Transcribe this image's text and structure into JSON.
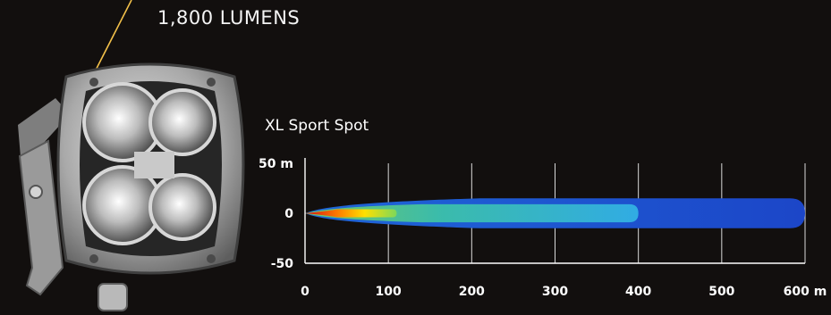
{
  "product": {
    "lumens_label": "1,800 LUMENS"
  },
  "chart_data": {
    "type": "heatmap",
    "title": "XL Sport Spot",
    "xlabel": "",
    "ylabel": "",
    "x_ticks": [
      {
        "value": 0,
        "label": "0"
      },
      {
        "value": 100,
        "label": "100"
      },
      {
        "value": 200,
        "label": "200"
      },
      {
        "value": 300,
        "label": "300"
      },
      {
        "value": 400,
        "label": "400"
      },
      {
        "value": 500,
        "label": "500"
      },
      {
        "value": 600,
        "label": "600 m"
      }
    ],
    "y_ticks": [
      {
        "value": 50,
        "label": "50 m"
      },
      {
        "value": 0,
        "label": "0"
      },
      {
        "value": -50,
        "label": "-50"
      }
    ],
    "xlim": [
      0,
      600
    ],
    "ylim": [
      -50,
      50
    ],
    "grid": true,
    "beam_pattern": {
      "max_reach_m": 600,
      "max_half_width_m": 15,
      "high_intensity_reach_m": 400,
      "high_intensity_half_width_m": 9,
      "hotspot_reach_m": 110,
      "hotspot_half_width_m": 4
    }
  },
  "colors": {
    "background": "#120f0e",
    "beam_outer": "#1d4fd0",
    "beam_mid": "#2ab3e8",
    "beam_inner": "#ffd000",
    "beam_hot": "#e0141a",
    "callout_line": "#f2c04a"
  }
}
